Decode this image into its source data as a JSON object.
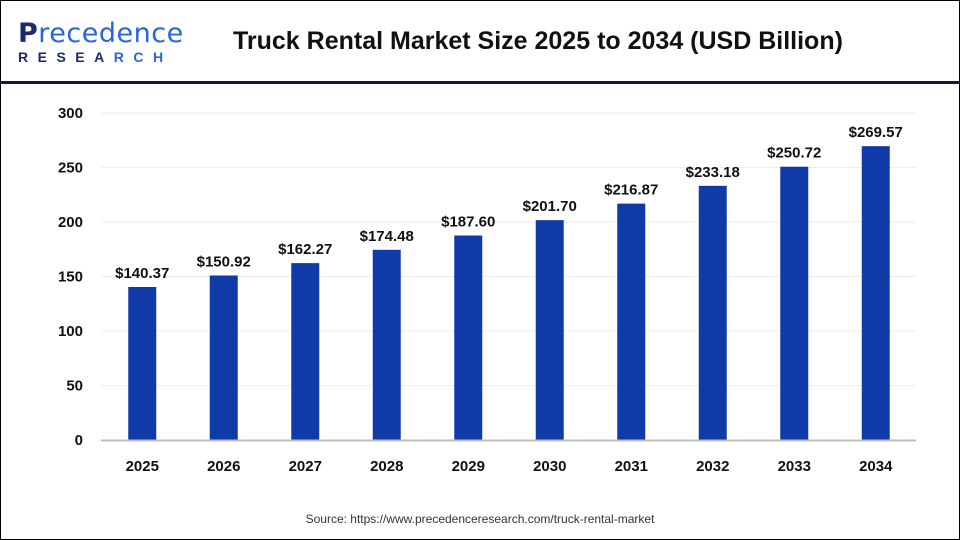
{
  "logo": {
    "text": "Precedence",
    "subtext": "RESEARCH"
  },
  "chart_data": {
    "type": "bar",
    "title": "Truck Rental Market Size 2025 to 2034 (USD Billion)",
    "categories": [
      "2025",
      "2026",
      "2027",
      "2028",
      "2029",
      "2030",
      "2031",
      "2032",
      "2033",
      "2034"
    ],
    "values": [
      140.37,
      150.92,
      162.27,
      174.48,
      187.6,
      201.7,
      216.87,
      233.18,
      250.72,
      269.57
    ],
    "data_labels": [
      "$140.37",
      "$150.92",
      "$162.27",
      "$174.48",
      "$187.60",
      "$201.70",
      "$216.87",
      "$233.18",
      "$250.72",
      "$269.57"
    ],
    "xlabel": "",
    "ylabel": "",
    "ylim": [
      0,
      300
    ],
    "yticks": [
      "0",
      "50",
      "100",
      "150",
      "200",
      "250",
      "300"
    ],
    "grid": true,
    "bar_color": "#0f3aa8"
  },
  "source": "Source: https://www.precedenceresearch.com/truck-rental-market"
}
